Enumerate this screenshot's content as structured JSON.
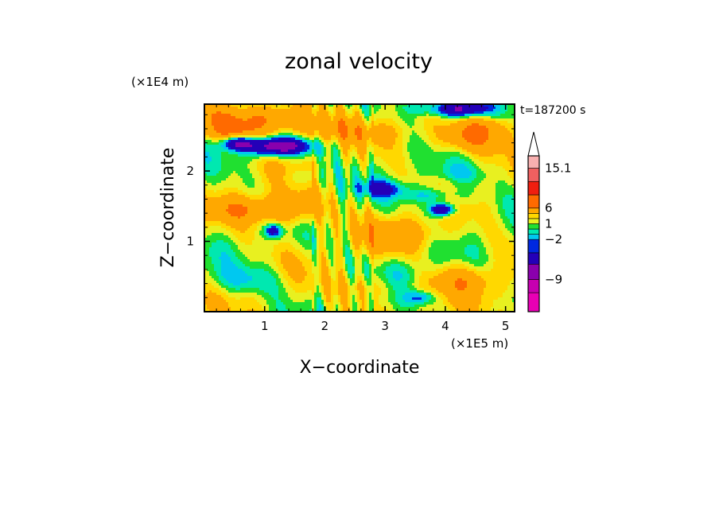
{
  "chart_data": {
    "type": "heatmap",
    "title": "zonal velocity",
    "xlabel": "X−coordinate",
    "ylabel": "Z−coordinate",
    "x_unit": "(×1E5 m)",
    "y_unit": "(×1E4 m)",
    "time_label": "t=187200 s",
    "xlim": [
      0,
      5.15
    ],
    "ylim": [
      0,
      2.95
    ],
    "x_ticks": [
      1,
      2,
      3,
      4,
      5
    ],
    "y_ticks": [
      1,
      2
    ],
    "x_tick_labels": [
      "1",
      "2",
      "3",
      "4",
      "5"
    ],
    "y_tick_labels": [
      "1",
      "2"
    ],
    "colorbar": {
      "labels": [
        {
          "text": "15.1",
          "value": 15.1
        },
        {
          "text": "6",
          "value": 6
        },
        {
          "text": "1",
          "value": 1
        },
        {
          "text": "−2",
          "value": -2
        },
        {
          "text": "−9",
          "value": -9
        }
      ],
      "levels": [
        -15,
        -12,
        -9,
        -6,
        -3,
        -2,
        -1,
        0,
        1,
        2,
        3,
        6,
        9,
        12,
        15.1
      ],
      "colors": [
        "#e800b4",
        "#c600b0",
        "#8a00ad",
        "#2400b8",
        "#0028e0",
        "#00c8f0",
        "#00e8b0",
        "#20e030",
        "#e8f020",
        "#ffd800",
        "#ffa800",
        "#ff6a00",
        "#f01e10",
        "#f06060",
        "#f8b0b0"
      ],
      "over_color": "#ffffff"
    },
    "blobs": [
      {
        "x": 1.0,
        "z": 2.75,
        "v": 5.5,
        "rx": 1.0,
        "rz": 0.18
      },
      {
        "x": 0.5,
        "z": 2.55,
        "v": 4.0,
        "rx": 0.5,
        "rz": 0.12
      },
      {
        "x": 2.2,
        "z": 2.55,
        "v": 2.5,
        "rx": 1.1,
        "rz": 0.15
      },
      {
        "x": 4.4,
        "z": 2.45,
        "v": 4.5,
        "rx": 0.6,
        "rz": 0.2
      },
      {
        "x": 4.7,
        "z": 2.65,
        "v": 3.0,
        "rx": 0.45,
        "rz": 0.16
      },
      {
        "x": 1.4,
        "z": 1.45,
        "v": 4.5,
        "rx": 0.55,
        "rz": 0.25
      },
      {
        "x": 0.6,
        "z": 1.45,
        "v": 3.5,
        "rx": 0.45,
        "rz": 0.18
      },
      {
        "x": 3.3,
        "z": 1.1,
        "v": 3.5,
        "rx": 0.65,
        "rz": 0.22
      },
      {
        "x": 4.3,
        "z": 0.45,
        "v": 3.5,
        "rx": 0.55,
        "rz": 0.22
      },
      {
        "x": 2.7,
        "z": 0.35,
        "v": 2.5,
        "rx": 0.5,
        "rz": 0.2
      },
      {
        "x": 1.2,
        "z": 2.35,
        "v": -10.0,
        "rx": 0.55,
        "rz": 0.13
      },
      {
        "x": 0.55,
        "z": 2.4,
        "v": -7.0,
        "rx": 0.25,
        "rz": 0.1
      },
      {
        "x": 4.25,
        "z": 2.88,
        "v": -9.0,
        "rx": 0.45,
        "rz": 0.12
      },
      {
        "x": 3.6,
        "z": 2.9,
        "v": -3.0,
        "rx": 0.3,
        "rz": 0.1
      },
      {
        "x": 3.95,
        "z": 1.45,
        "v": -9.0,
        "rx": 0.2,
        "rz": 0.09
      },
      {
        "x": 3.8,
        "z": 1.65,
        "v": -3.5,
        "rx": 0.5,
        "rz": 0.12
      },
      {
        "x": 1.15,
        "z": 1.15,
        "v": -6.0,
        "rx": 0.15,
        "rz": 0.1
      },
      {
        "x": 2.95,
        "z": 1.75,
        "v": -4.0,
        "rx": 0.4,
        "rz": 0.12
      },
      {
        "x": 4.2,
        "z": 1.95,
        "v": -2.0,
        "rx": 0.5,
        "rz": 0.15
      },
      {
        "x": 0.7,
        "z": 0.45,
        "v": -2.5,
        "rx": 0.6,
        "rz": 0.2
      },
      {
        "x": 3.3,
        "z": 0.55,
        "v": -2.0,
        "rx": 0.4,
        "rz": 0.2
      },
      {
        "x": 1.7,
        "z": 1.9,
        "v": -1.5,
        "rx": 0.35,
        "rz": 0.15
      },
      {
        "x": 3.6,
        "z": 0.2,
        "v": -4.0,
        "rx": 0.25,
        "rz": 0.1
      }
    ]
  }
}
